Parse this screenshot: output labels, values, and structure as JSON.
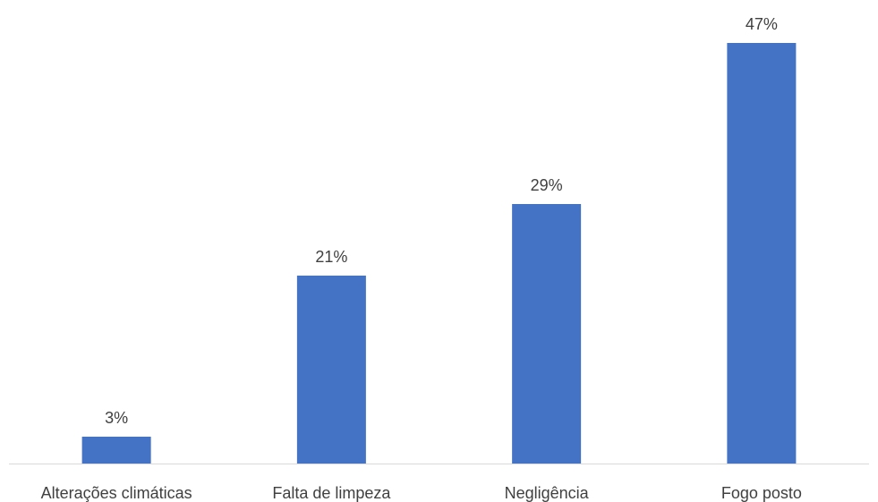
{
  "chart_data": {
    "type": "bar",
    "title": "",
    "xlabel": "",
    "ylabel": "",
    "categories": [
      "Alterações climáticas",
      "Falta de limpeza",
      "Negligência",
      "Fogo posto"
    ],
    "values": [
      3,
      21,
      29,
      47
    ],
    "data_labels": [
      "3%",
      "21%",
      "29%",
      "47%"
    ],
    "unit": "%",
    "ylim": [
      0,
      50
    ],
    "y_axis_visible": false,
    "grid": false,
    "legend": "none",
    "bar_color": "#4472C4"
  }
}
